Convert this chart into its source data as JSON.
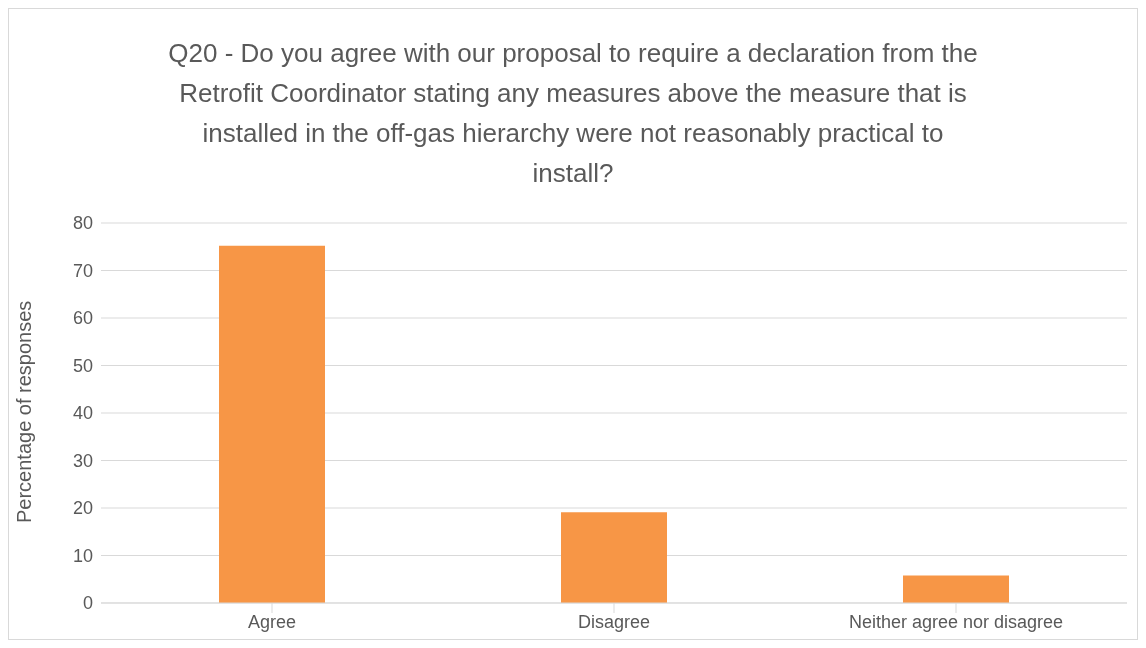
{
  "chart_data": {
    "type": "bar",
    "title": "Q20 - Do you agree with our proposal to require a declaration from the Retrofit Coordinator stating any measures above the measure that is installed in the off-gas hierarchy were not reasonably practical to install?",
    "ylabel": "Percentage of responses",
    "categories": [
      "Agree",
      "Disagree",
      "Neither agree nor disagree"
    ],
    "values": [
      75.2,
      19.1,
      5.8
    ],
    "color": "#f79646",
    "ylim": [
      0,
      80
    ],
    "yticks": [
      0,
      10,
      20,
      30,
      40,
      50,
      60,
      70,
      80
    ],
    "grid": "y",
    "legend": false
  }
}
